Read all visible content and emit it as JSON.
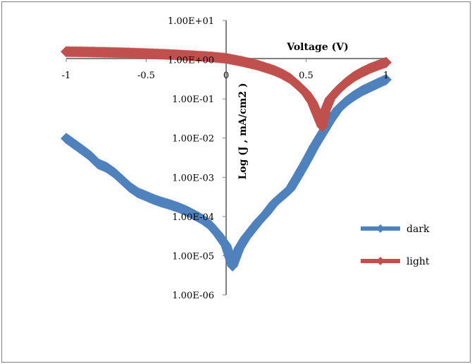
{
  "chart_data": {
    "type": "scatter",
    "title": "",
    "xlabel": "Voltage (V)",
    "ylabel": "Log (J , mA/cm2 )",
    "x_scale": "linear",
    "y_scale": "log",
    "xlim": [
      -1,
      1
    ],
    "ylim": [
      1e-06,
      10
    ],
    "x_ticks": [
      {
        "v": -1,
        "label": "-1"
      },
      {
        "v": -0.5,
        "label": "-0.5"
      },
      {
        "v": 0,
        "label": "0"
      },
      {
        "v": 0.5,
        "label": "0.5"
      },
      {
        "v": 1,
        "label": "1"
      }
    ],
    "y_ticks": [
      {
        "v": 10,
        "label": "1.00E+01"
      },
      {
        "v": 1,
        "label": "1.00E+00"
      },
      {
        "v": 0.1,
        "label": "1.00E-01"
      },
      {
        "v": 0.01,
        "label": "1.00E-02"
      },
      {
        "v": 0.001,
        "label": "1.00E-03"
      },
      {
        "v": 0.0001,
        "label": "1.00E-04"
      },
      {
        "v": 1e-05,
        "label": "1.00E-05"
      },
      {
        "v": 1e-06,
        "label": "1.00E-06"
      }
    ],
    "grid": false,
    "legend_position": "right",
    "series": [
      {
        "name": "dark",
        "color": "#4F81BD",
        "marker": "diamond",
        "points": [
          [
            -1.0,
            0.0098
          ],
          [
            -0.95,
            0.007
          ],
          [
            -0.9,
            0.005
          ],
          [
            -0.85,
            0.0035
          ],
          [
            -0.8,
            0.0022
          ],
          [
            -0.75,
            0.0018
          ],
          [
            -0.7,
            0.0013
          ],
          [
            -0.65,
            0.00085
          ],
          [
            -0.6,
            0.00055
          ],
          [
            -0.55,
            0.0004
          ],
          [
            -0.5,
            0.00033
          ],
          [
            -0.45,
            0.00027
          ],
          [
            -0.4,
            0.00023
          ],
          [
            -0.35,
            0.0002
          ],
          [
            -0.3,
            0.00017
          ],
          [
            -0.25,
            0.00014
          ],
          [
            -0.2,
            0.00011
          ],
          [
            -0.15,
            8.5e-05
          ],
          [
            -0.1,
            6e-05
          ],
          [
            -0.05,
            3.5e-05
          ],
          [
            0.0,
            1.8e-05
          ],
          [
            0.04,
            5.5e-06
          ],
          [
            0.08,
            1.5e-05
          ],
          [
            0.12,
            2.8e-05
          ],
          [
            0.16,
            4.5e-05
          ],
          [
            0.2,
            7.2e-05
          ],
          [
            0.25,
            0.00012
          ],
          [
            0.3,
            0.00022
          ],
          [
            0.35,
            0.00033
          ],
          [
            0.4,
            0.0005
          ],
          [
            0.45,
            0.0011
          ],
          [
            0.5,
            0.0025
          ],
          [
            0.55,
            0.006
          ],
          [
            0.6,
            0.013
          ],
          [
            0.65,
            0.028
          ],
          [
            0.7,
            0.055
          ],
          [
            0.75,
            0.085
          ],
          [
            0.8,
            0.12
          ],
          [
            0.85,
            0.16
          ],
          [
            0.9,
            0.2
          ],
          [
            0.95,
            0.25
          ],
          [
            1.0,
            0.31
          ]
        ]
      },
      {
        "name": "light",
        "color": "#C0504D",
        "marker": "diamond",
        "points": [
          [
            -1.0,
            1.6
          ],
          [
            -0.9,
            1.58
          ],
          [
            -0.8,
            1.55
          ],
          [
            -0.7,
            1.52
          ],
          [
            -0.6,
            1.48
          ],
          [
            -0.5,
            1.43
          ],
          [
            -0.4,
            1.38
          ],
          [
            -0.3,
            1.32
          ],
          [
            -0.2,
            1.25
          ],
          [
            -0.1,
            1.18
          ],
          [
            0.0,
            1.08
          ],
          [
            0.1,
            0.9
          ],
          [
            0.2,
            0.72
          ],
          [
            0.3,
            0.53
          ],
          [
            0.35,
            0.43
          ],
          [
            0.4,
            0.33
          ],
          [
            0.45,
            0.22
          ],
          [
            0.5,
            0.14
          ],
          [
            0.54,
            0.08
          ],
          [
            0.57,
            0.04
          ],
          [
            0.6,
            0.02
          ],
          [
            0.62,
            0.05
          ],
          [
            0.65,
            0.1
          ],
          [
            0.7,
            0.17
          ],
          [
            0.75,
            0.26
          ],
          [
            0.8,
            0.37
          ],
          [
            0.85,
            0.48
          ],
          [
            0.9,
            0.6
          ],
          [
            0.95,
            0.72
          ],
          [
            1.0,
            0.85
          ]
        ]
      }
    ]
  }
}
